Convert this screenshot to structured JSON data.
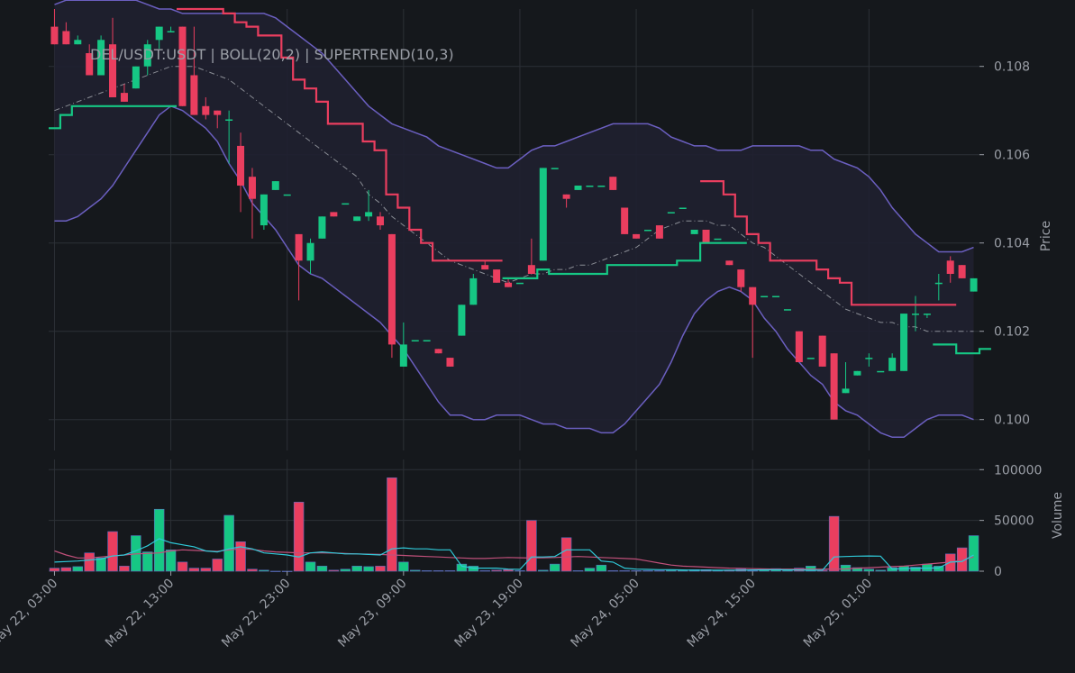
{
  "colors": {
    "background": "#15181c",
    "grid": "#2c3036",
    "text": "#9a9ea6",
    "up": "#16c784",
    "down": "#ea3e5f",
    "band": "#6b5fc0",
    "band_fill": "#1f2030",
    "basis": "#8a8d95",
    "vol_ma_fast": "#2fc9d8",
    "vol_ma_slow": "#c0507a"
  },
  "chart_data": [
    {
      "type": "candlestick",
      "title": "DEL/USDT:USDT | BOLL(20,2) | SUPERTREND(10,3)",
      "ylabel": "Price",
      "ylim": [
        0.0993,
        0.1093
      ],
      "yticks": [
        0.1,
        0.102,
        0.104,
        0.106,
        0.108
      ],
      "ytick_labels": [
        "0.100",
        "0.102",
        "0.104",
        "0.106",
        "0.108"
      ],
      "grid": true,
      "bar_count": 80,
      "candles": [
        [
          0.1089,
          0.1093,
          0.1085,
          0.1085
        ],
        [
          0.1088,
          0.109,
          0.1085,
          0.1085
        ],
        [
          0.1085,
          0.1087,
          0.1085,
          0.1086
        ],
        [
          0.1083,
          0.1085,
          0.1078,
          0.1078
        ],
        [
          0.1078,
          0.1087,
          0.1078,
          0.1086
        ],
        [
          0.1085,
          0.1091,
          0.1073,
          0.1073
        ],
        [
          0.1074,
          0.1076,
          0.1072,
          0.1072
        ],
        [
          0.1075,
          0.108,
          0.1075,
          0.108
        ],
        [
          0.108,
          0.1086,
          0.1078,
          0.1085
        ],
        [
          0.1086,
          0.1089,
          0.1084,
          0.1089
        ],
        [
          0.1088,
          0.1089,
          0.1088,
          0.1088
        ],
        [
          0.1089,
          0.1089,
          0.1071,
          0.1071
        ],
        [
          0.1078,
          0.1089,
          0.1069,
          0.1069
        ],
        [
          0.1071,
          0.1073,
          0.1068,
          0.1069
        ],
        [
          0.107,
          0.107,
          0.1066,
          0.1069
        ],
        [
          0.1068,
          0.107,
          0.1058,
          0.1068
        ],
        [
          0.1062,
          0.1065,
          0.1047,
          0.1053
        ],
        [
          0.1055,
          0.1057,
          0.1041,
          0.105
        ],
        [
          0.1044,
          0.1051,
          0.1043,
          0.1051
        ],
        [
          0.1052,
          0.1054,
          0.1052,
          0.1054
        ],
        [
          0.1051,
          0.1051,
          0.1051,
          0.1051
        ],
        [
          0.1042,
          0.1042,
          0.1027,
          0.1036
        ],
        [
          0.1036,
          0.1041,
          0.1033,
          0.104
        ],
        [
          0.1041,
          0.1046,
          0.1041,
          0.1046
        ],
        [
          0.1047,
          0.1047,
          0.1046,
          0.1046
        ],
        [
          0.1049,
          0.1049,
          0.1049,
          0.1049
        ],
        [
          0.1045,
          0.1046,
          0.1045,
          0.1046
        ],
        [
          0.1046,
          0.1052,
          0.1045,
          0.1047
        ],
        [
          0.1046,
          0.1047,
          0.1043,
          0.1044
        ],
        [
          0.1042,
          0.1042,
          0.1014,
          0.1017
        ],
        [
          0.1012,
          0.1022,
          0.1012,
          0.1017
        ],
        [
          0.1018,
          0.1018,
          0.1018,
          0.1018
        ],
        [
          0.1018,
          0.1018,
          0.1018,
          0.1018
        ],
        [
          0.1016,
          0.1016,
          0.1015,
          0.1015
        ],
        [
          0.1014,
          0.1014,
          0.1012,
          0.1012
        ],
        [
          0.1019,
          0.1026,
          0.1019,
          0.1026
        ],
        [
          0.1026,
          0.1033,
          0.1026,
          0.1032
        ],
        [
          0.1035,
          0.1036,
          0.1034,
          0.1034
        ],
        [
          0.1034,
          0.1034,
          0.1031,
          0.1031
        ],
        [
          0.1031,
          0.1032,
          0.103,
          0.103
        ],
        [
          0.1031,
          0.1031,
          0.1031,
          0.1031
        ],
        [
          0.1035,
          0.1041,
          0.1033,
          0.1033
        ],
        [
          0.1036,
          0.1057,
          0.1036,
          0.1057
        ],
        [
          0.1057,
          0.1057,
          0.1057,
          0.1057
        ],
        [
          0.1051,
          0.1051,
          0.1048,
          0.105
        ],
        [
          0.1052,
          0.1053,
          0.1052,
          0.1053
        ],
        [
          0.1053,
          0.1053,
          0.1053,
          0.1053
        ],
        [
          0.1053,
          0.1053,
          0.1053,
          0.1053
        ],
        [
          0.1055,
          0.1055,
          0.1052,
          0.1052
        ],
        [
          0.1048,
          0.1048,
          0.1042,
          0.1042
        ],
        [
          0.1042,
          0.1042,
          0.1041,
          0.1041
        ],
        [
          0.1043,
          0.1043,
          0.1043,
          0.1043
        ],
        [
          0.1044,
          0.1044,
          0.1041,
          0.1041
        ],
        [
          0.1047,
          0.1047,
          0.1047,
          0.1047
        ],
        [
          0.1048,
          0.1048,
          0.1048,
          0.1048
        ],
        [
          0.1042,
          0.1043,
          0.1042,
          0.1043
        ],
        [
          0.1043,
          0.1043,
          0.104,
          0.104
        ],
        [
          0.1041,
          0.1041,
          0.1041,
          0.1041
        ],
        [
          0.1036,
          0.1036,
          0.1035,
          0.1035
        ],
        [
          0.1034,
          0.1034,
          0.1029,
          0.103
        ],
        [
          0.103,
          0.103,
          0.1014,
          0.1026
        ],
        [
          0.1028,
          0.1028,
          0.1028,
          0.1028
        ],
        [
          0.1028,
          0.1028,
          0.1028,
          0.1028
        ],
        [
          0.1025,
          0.1025,
          0.1025,
          0.1025
        ],
        [
          0.102,
          0.102,
          0.1013,
          0.1013
        ],
        [
          0.1014,
          0.1014,
          0.1014,
          0.1014
        ],
        [
          0.1019,
          0.1019,
          0.1012,
          0.1012
        ],
        [
          0.1015,
          0.1015,
          0.1,
          0.1
        ],
        [
          0.1006,
          0.1013,
          0.1006,
          0.1007
        ],
        [
          0.101,
          0.1011,
          0.101,
          0.1011
        ],
        [
          0.1014,
          0.1015,
          0.1012,
          0.1014
        ],
        [
          0.1011,
          0.1011,
          0.1011,
          0.1011
        ],
        [
          0.1011,
          0.1015,
          0.1011,
          0.1014
        ],
        [
          0.1011,
          0.1024,
          0.1011,
          0.1024
        ],
        [
          0.1024,
          0.1028,
          0.102,
          0.1024
        ],
        [
          0.1024,
          0.1024,
          0.1023,
          0.1024
        ],
        [
          0.1031,
          0.1033,
          0.1027,
          0.1031
        ],
        [
          0.1036,
          0.1037,
          0.1031,
          0.1033
        ],
        [
          0.1035,
          0.1035,
          0.1032,
          0.1032
        ],
        [
          0.1029,
          0.1032,
          0.1029,
          0.1032
        ]
      ],
      "bollinger": {
        "upper": [
          0.1094,
          0.1095,
          0.1095,
          0.1095,
          0.1095,
          0.1095,
          0.1095,
          0.1095,
          0.1094,
          0.1093,
          0.1093,
          0.1092,
          0.1092,
          0.1092,
          0.1092,
          0.1092,
          0.1092,
          0.1092,
          0.1092,
          0.1091,
          0.1089,
          0.1087,
          0.1085,
          0.1083,
          0.108,
          0.1077,
          0.1074,
          0.1071,
          0.1069,
          0.1067,
          0.1066,
          0.1065,
          0.1064,
          0.1062,
          0.1061,
          0.106,
          0.1059,
          0.1058,
          0.1057,
          0.1057,
          0.1059,
          0.1061,
          0.1062,
          0.1062,
          0.1063,
          0.1064,
          0.1065,
          0.1066,
          0.1067,
          0.1067,
          0.1067,
          0.1067,
          0.1066,
          0.1064,
          0.1063,
          0.1062,
          0.1062,
          0.1061,
          0.1061,
          0.1061,
          0.1062,
          0.1062,
          0.1062,
          0.1062,
          0.1062,
          0.1061,
          0.1061,
          0.1059,
          0.1058,
          0.1057,
          0.1055,
          0.1052,
          0.1048,
          0.1045,
          0.1042,
          0.104,
          0.1038,
          0.1038,
          0.1038,
          0.1039
        ],
        "basis": [
          0.107,
          0.1071,
          0.1072,
          0.1073,
          0.1074,
          0.1075,
          0.1076,
          0.1077,
          0.1078,
          0.1079,
          0.108,
          0.108,
          0.108,
          0.1079,
          0.1078,
          0.1077,
          0.1075,
          0.1073,
          0.1071,
          0.1069,
          0.1067,
          0.1065,
          0.1063,
          0.1061,
          0.1059,
          0.1057,
          0.1055,
          0.1051,
          0.1049,
          0.1046,
          0.1044,
          0.1042,
          0.104,
          0.1038,
          0.1036,
          0.1035,
          0.1034,
          0.1033,
          0.1032,
          0.1031,
          0.1032,
          0.1033,
          0.1033,
          0.1034,
          0.1034,
          0.1035,
          0.1035,
          0.1036,
          0.1037,
          0.1038,
          0.1039,
          0.1041,
          0.1043,
          0.1044,
          0.1045,
          0.1045,
          0.1045,
          0.1044,
          0.1044,
          0.1042,
          0.104,
          0.1039,
          0.1037,
          0.1035,
          0.1033,
          0.1031,
          0.1029,
          0.1027,
          0.1025,
          0.1024,
          0.1023,
          0.1022,
          0.1022,
          0.1021,
          0.1021,
          0.102,
          0.102,
          0.102,
          0.102,
          0.102
        ],
        "lower": [
          0.1045,
          0.1045,
          0.1046,
          0.1048,
          0.105,
          0.1053,
          0.1057,
          0.1061,
          0.1065,
          0.1069,
          0.1071,
          0.107,
          0.1068,
          0.1066,
          0.1063,
          0.1058,
          0.1054,
          0.1049,
          0.1046,
          0.1043,
          0.1039,
          0.1035,
          0.1033,
          0.1032,
          0.103,
          0.1028,
          0.1026,
          0.1024,
          0.1022,
          0.1019,
          0.1016,
          0.1012,
          0.1008,
          0.1004,
          0.1001,
          0.1001,
          0.1,
          0.1,
          0.1001,
          0.1001,
          0.1001,
          0.1,
          0.0999,
          0.0999,
          0.0998,
          0.0998,
          0.0998,
          0.0997,
          0.0997,
          0.0999,
          0.1002,
          0.1005,
          0.1008,
          0.1013,
          0.1019,
          0.1024,
          0.1027,
          0.1029,
          0.103,
          0.1029,
          0.1027,
          0.1023,
          0.102,
          0.1016,
          0.1013,
          0.101,
          0.1008,
          0.1004,
          0.1002,
          0.1001,
          0.0999,
          0.0997,
          0.0996,
          0.0996,
          0.0998,
          0.1,
          0.1001,
          0.1001,
          0.1001,
          0.1
        ]
      },
      "supertrend": {
        "up": [
          0.1066,
          0.1069,
          0.1071,
          0.1071,
          0.1071,
          0.1071,
          0.1071,
          0.1071,
          0.1071,
          0.1071,
          0.1071,
          null,
          null,
          null,
          null,
          null,
          null,
          null,
          null,
          null,
          null,
          null,
          null,
          null,
          null,
          null,
          null,
          null,
          null,
          null,
          null,
          null,
          null,
          null,
          null,
          null,
          null,
          null,
          null,
          0.1032,
          0.1032,
          0.1032,
          0.1034,
          0.1033,
          0.1033,
          0.1033,
          0.1033,
          0.1033,
          0.1035,
          0.1035,
          0.1035,
          0.1035,
          0.1035,
          0.1035,
          0.1036,
          0.1036,
          0.104,
          0.104,
          0.104,
          0.104,
          null,
          null,
          null,
          null,
          null,
          null,
          null,
          null,
          null,
          null,
          null,
          null,
          null,
          null,
          null,
          null,
          0.1017,
          0.1017,
          0.1015,
          0.1015,
          0.1016
        ],
        "down": [
          null,
          null,
          null,
          null,
          null,
          null,
          null,
          null,
          null,
          null,
          null,
          0.1093,
          0.1093,
          0.1093,
          0.1093,
          0.1092,
          0.109,
          0.1089,
          0.1087,
          0.1087,
          0.1082,
          0.1077,
          0.1075,
          0.1072,
          0.1067,
          0.1067,
          0.1067,
          0.1063,
          0.1061,
          0.1051,
          0.1048,
          0.1043,
          0.104,
          0.1036,
          0.1036,
          0.1036,
          0.1036,
          0.1036,
          0.1036,
          null,
          null,
          null,
          null,
          null,
          null,
          null,
          null,
          null,
          null,
          null,
          null,
          null,
          null,
          null,
          null,
          null,
          0.1054,
          0.1054,
          0.1051,
          0.1046,
          0.1042,
          0.104,
          0.1036,
          0.1036,
          0.1036,
          0.1036,
          0.1034,
          0.1032,
          0.1031,
          0.1026,
          0.1026,
          0.1026,
          0.1026,
          0.1026,
          0.1026,
          0.1026,
          0.1026,
          0.1026,
          null,
          null
        ]
      }
    },
    {
      "type": "bar",
      "ylabel": "Volume",
      "ylim": [
        0,
        110000
      ],
      "yticks": [
        0,
        50000,
        100000
      ],
      "ytick_labels": [
        "0",
        "50000",
        "100000"
      ],
      "grid": true,
      "volumes": [
        3000,
        3500,
        4500,
        18000,
        13000,
        39000,
        5000,
        35000,
        19000,
        61000,
        21000,
        9000,
        3000,
        3000,
        12000,
        55000,
        29000,
        2000,
        1000,
        0,
        0,
        68000,
        9000,
        5000,
        1000,
        2000,
        5000,
        4500,
        5000,
        92000,
        9000,
        1000,
        500,
        500,
        500,
        7000,
        5000,
        500,
        1000,
        1500,
        500,
        50000,
        1000,
        7000,
        33000,
        500,
        3000,
        6000,
        500,
        500,
        500,
        500,
        500,
        1000,
        1000,
        1500,
        1500,
        1000,
        1000,
        2000,
        500,
        1500,
        2500,
        1000,
        3000,
        5000,
        1000,
        54000,
        6000,
        3500,
        2000,
        1000,
        3500,
        5000,
        4000,
        7000,
        5000,
        17000,
        23000,
        35000
      ],
      "ma_fast": [
        9000,
        9500,
        10000,
        11000,
        12000,
        15000,
        16000,
        20000,
        25000,
        32000,
        28000,
        26000,
        24000,
        20000,
        19000,
        22000,
        24000,
        22000,
        18000,
        17000,
        16000,
        14000,
        18000,
        19000,
        18000,
        17000,
        17000,
        16500,
        16000,
        22000,
        23000,
        22000,
        22000,
        21000,
        21000,
        5000,
        3000,
        3000,
        3000,
        2000,
        1800,
        14000,
        14000,
        14500,
        21000,
        21000,
        21000,
        10000,
        9000,
        3000,
        2000,
        1800,
        1500,
        1500,
        1200,
        1000,
        1000,
        1000,
        1000,
        1000,
        1200,
        1300,
        1500,
        1300,
        1200,
        1000,
        1000,
        14000,
        14500,
        14800,
        15000,
        14800,
        2000,
        2500,
        3000,
        3000,
        3200,
        9000,
        9500,
        16000
      ],
      "ma_slow": [
        20000,
        16000,
        13000,
        13000,
        14000,
        15000,
        16000,
        17000,
        17500,
        18000,
        20000,
        21000,
        20500,
        20000,
        19500,
        21000,
        22000,
        21500,
        20000,
        19000,
        18500,
        18000,
        18000,
        18000,
        17800,
        17500,
        17000,
        16800,
        16500,
        16000,
        15500,
        15000,
        14500,
        14000,
        13500,
        13000,
        12500,
        12500,
        13000,
        13500,
        13200,
        13000,
        13200,
        13500,
        14000,
        14500,
        14000,
        13500,
        13000,
        12500,
        12000,
        10000,
        8000,
        6000,
        5000,
        4500,
        4000,
        3500,
        3000,
        2800,
        2500,
        2200,
        2000,
        2000,
        2000,
        2000,
        2000,
        2100,
        2200,
        3000,
        3500,
        4000,
        4500,
        5000,
        6000,
        7000,
        8000,
        9000,
        11000,
        14000
      ]
    }
  ],
  "x_ticks": [
    {
      "index": 0,
      "label": "May 22, 03:00"
    },
    {
      "index": 10,
      "label": "May 22, 13:00"
    },
    {
      "index": 20,
      "label": "May 22, 23:00"
    },
    {
      "index": 30,
      "label": "May 23, 09:00"
    },
    {
      "index": 40,
      "label": "May 23, 19:00"
    },
    {
      "index": 50,
      "label": "May 24, 05:00"
    },
    {
      "index": 60,
      "label": "May 24, 15:00"
    },
    {
      "index": 70,
      "label": "May 25, 01:00"
    }
  ]
}
